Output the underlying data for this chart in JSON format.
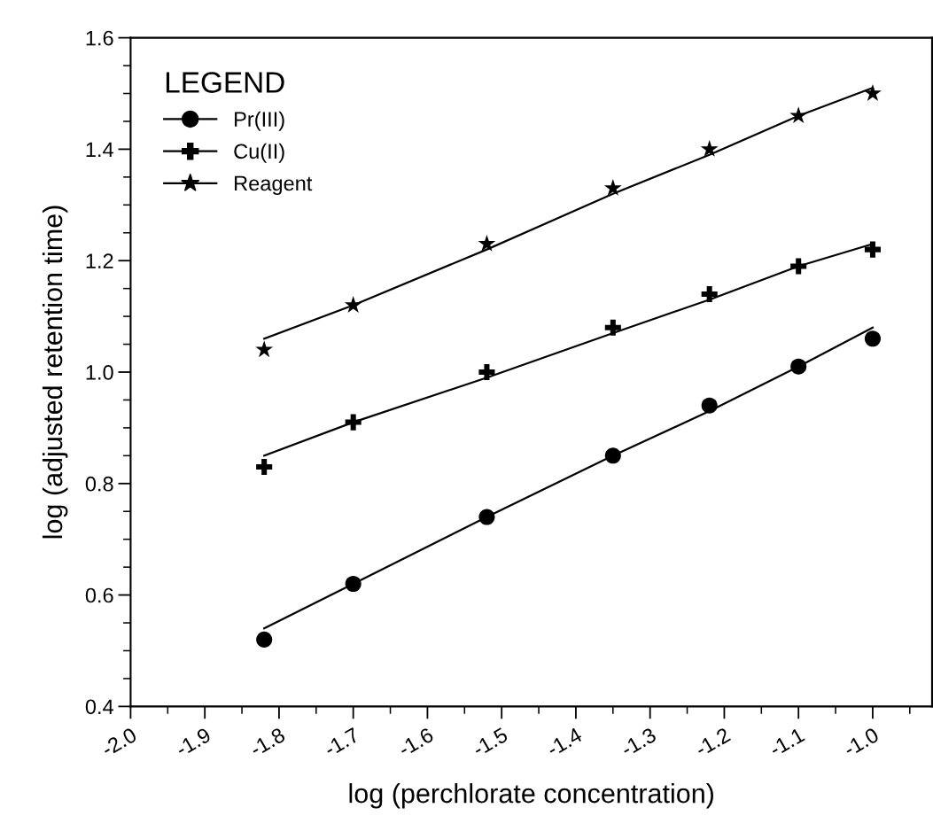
{
  "chart_data": {
    "type": "scatter",
    "xlabel": "log (perchlorate concentration)",
    "ylabel": "log (adjusted retention time)",
    "legend_title": "LEGEND",
    "legend": "top left",
    "grid": false,
    "xlim": [
      -2.0,
      -0.92
    ],
    "xticks": [
      {
        "value": -2.0,
        "label": "-2.0"
      },
      -1.9,
      -1.8,
      -1.7,
      -1.6,
      -1.5,
      -1.4,
      -1.3,
      -1.2,
      -1.1,
      {
        "value": -1.0,
        "label": "-1.0"
      }
    ],
    "ylim": [
      0.4,
      1.6
    ],
    "yticks": [
      0.4,
      0.6,
      0.8,
      {
        "value": 1.0,
        "label": "1.0"
      },
      1.2,
      1.4,
      1.6
    ],
    "x": [
      -1.82,
      -1.7,
      -1.52,
      -1.35,
      -1.22,
      -1.1,
      -1.0
    ],
    "series": [
      {
        "name": "Pr(III)",
        "marker": "circle",
        "color": "#000000",
        "values": [
          0.52,
          0.62,
          0.74,
          0.85,
          0.94,
          1.01,
          1.06
        ]
      },
      {
        "name": "Cu(II)",
        "marker": "cross",
        "color": "#000000",
        "values": [
          0.83,
          0.91,
          1.0,
          1.08,
          1.14,
          1.19,
          1.22
        ]
      },
      {
        "name": "Reagent",
        "marker": "star",
        "color": "#000000",
        "values": [
          1.04,
          1.12,
          1.23,
          1.33,
          1.4,
          1.46,
          1.5
        ]
      },
      {
        "type": "line",
        "marker": "none",
        "line_style": "solid",
        "color": "#000000",
        "values": [
          0.54,
          0.62,
          0.74,
          0.85,
          0.93,
          1.01,
          1.08
        ]
      },
      {
        "type": "line",
        "marker": "none",
        "line_style": "solid",
        "color": "#000000",
        "values": [
          0.85,
          0.91,
          0.99,
          1.07,
          1.13,
          1.19,
          1.23
        ]
      },
      {
        "type": "line",
        "marker": "none",
        "line_style": "solid",
        "color": "#000000",
        "values": [
          1.06,
          1.12,
          1.22,
          1.32,
          1.39,
          1.46,
          1.51
        ]
      }
    ]
  }
}
